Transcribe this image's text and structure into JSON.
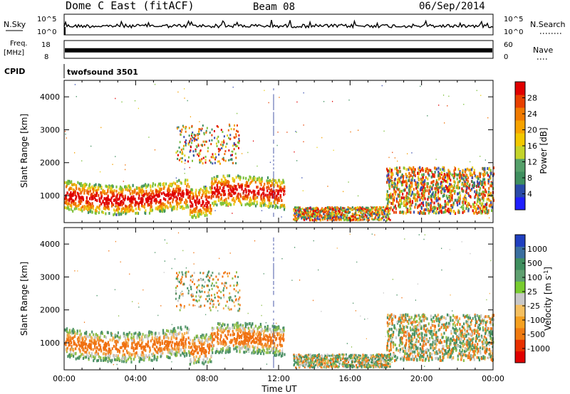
{
  "header": {
    "station": "Dome C East (fitACF)",
    "beam": "Beam 08",
    "date": "06/Sep/2014"
  },
  "left_labels": {
    "nsky": "N.Sky",
    "freq_line1": "Freq.",
    "freq_line2": "[MHz]",
    "cpid": "CPID"
  },
  "right_labels": {
    "nsearch": "N.Search",
    "nave": "Nave"
  },
  "cpid_value": "twofsound 3501",
  "colors": {
    "trace": "#000000",
    "axis": "#000000"
  },
  "chart_data": [
    {
      "type": "line",
      "name": "noise-panel",
      "ylabel": "",
      "yticks_left": [
        "10^5",
        "10^0"
      ],
      "yticks_right": [
        "10^5",
        "10^0"
      ],
      "x": [
        0,
        24
      ],
      "note_series": [
        "N.Sky",
        "N.Search"
      ]
    },
    {
      "type": "line",
      "name": "frequency-panel",
      "yticks_left": [
        "18",
        "8"
      ],
      "yticks_right": [
        "60",
        "0"
      ],
      "series": [
        {
          "name": "Freq.",
          "level_fraction": 0.45
        }
      ]
    },
    {
      "type": "heatmap",
      "name": "power-panel",
      "ylabel": "Slant Range [km]",
      "ylim": [
        180,
        4500
      ],
      "yticks": [
        1000,
        2000,
        3000,
        4000
      ],
      "xlim": [
        0,
        24
      ],
      "colorbar": {
        "label": "Power [dB]",
        "ticks": [
          "4",
          "8",
          "12",
          "16",
          "20",
          "24",
          "28"
        ],
        "colors": [
          "#1f1fff",
          "#2a4aa8",
          "#3f8f5f",
          "#55a06a",
          "#c4d42a",
          "#f2c800",
          "#f7a300",
          "#f07a00",
          "#e84000",
          "#e00000"
        ]
      }
    },
    {
      "type": "heatmap",
      "name": "velocity-panel",
      "ylabel": "Slant Range [km]",
      "ylim": [
        180,
        4500
      ],
      "yticks": [
        1000,
        2000,
        3000,
        4000
      ],
      "xlim": [
        0,
        24
      ],
      "xticks": [
        "00:00",
        "04:00",
        "08:00",
        "12:00",
        "16:00",
        "20:00",
        "00:00"
      ],
      "xlabel": "Time UT",
      "colorbar": {
        "label": "Velocity [m s^-1]",
        "ticks": [
          "1000",
          "500",
          "100",
          "25",
          "-25",
          "-100",
          "-500",
          "-1000"
        ],
        "colors": [
          "#2040c0",
          "#3a6fa0",
          "#3f8f5f",
          "#5fa070",
          "#78cc30",
          "#c8c8c8",
          "#f5c060",
          "#f5a020",
          "#f07a10",
          "#e83000",
          "#e00000"
        ]
      }
    }
  ]
}
